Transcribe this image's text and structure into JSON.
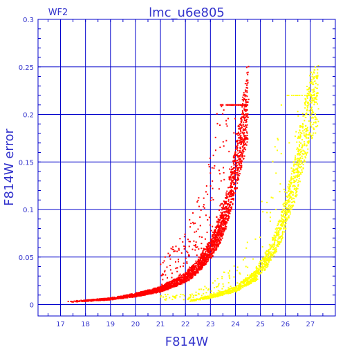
{
  "chart_data": {
    "type": "scatter",
    "title": "lmc_u6e805",
    "subtitle": "WF2",
    "xlabel": "F814W",
    "ylabel": "F814W error",
    "xlim": [
      16.1,
      28.0
    ],
    "ylim": [
      -0.012,
      0.3
    ],
    "x_ticks": [
      17,
      18,
      19,
      20,
      21,
      22,
      23,
      24,
      25,
      26,
      27
    ],
    "y_ticks": [
      0,
      0.05,
      0.1,
      0.15,
      0.2,
      0.25,
      0.3
    ],
    "y_tick_labels": [
      "0",
      "0.05",
      "0.1",
      "0.15",
      "0.2",
      "0.25",
      "0.3"
    ],
    "grid": true,
    "series": [
      {
        "color": "#ff0000",
        "envelope": [
          [
            17.3,
            0.003
          ],
          [
            18.0,
            0.004
          ],
          [
            19.0,
            0.006
          ],
          [
            20.0,
            0.01
          ],
          [
            21.0,
            0.016
          ],
          [
            22.0,
            0.028
          ],
          [
            22.5,
            0.04
          ],
          [
            23.0,
            0.058
          ],
          [
            23.4,
            0.08
          ],
          [
            23.7,
            0.105
          ],
          [
            24.0,
            0.14
          ],
          [
            24.2,
            0.17
          ],
          [
            24.4,
            0.2
          ],
          [
            24.5,
            0.215
          ]
        ],
        "scatter_range": {
          "x": [
            21.0,
            24.5
          ],
          "y": [
            0.01,
            0.21
          ]
        }
      },
      {
        "color": "#ffff00",
        "envelope": [
          [
            22.2,
            0.004
          ],
          [
            23.0,
            0.008
          ],
          [
            24.0,
            0.016
          ],
          [
            24.8,
            0.03
          ],
          [
            25.2,
            0.045
          ],
          [
            25.6,
            0.065
          ],
          [
            26.0,
            0.095
          ],
          [
            26.4,
            0.135
          ],
          [
            26.7,
            0.17
          ],
          [
            27.0,
            0.21
          ],
          [
            27.3,
            0.218
          ]
        ],
        "scatter_range": {
          "x": [
            21.0,
            27.3
          ],
          "y": [
            0.005,
            0.22
          ]
        }
      }
    ]
  },
  "colors": {
    "axis": "#0000cc",
    "grid": "#0000cc",
    "label": "#3333cc"
  }
}
